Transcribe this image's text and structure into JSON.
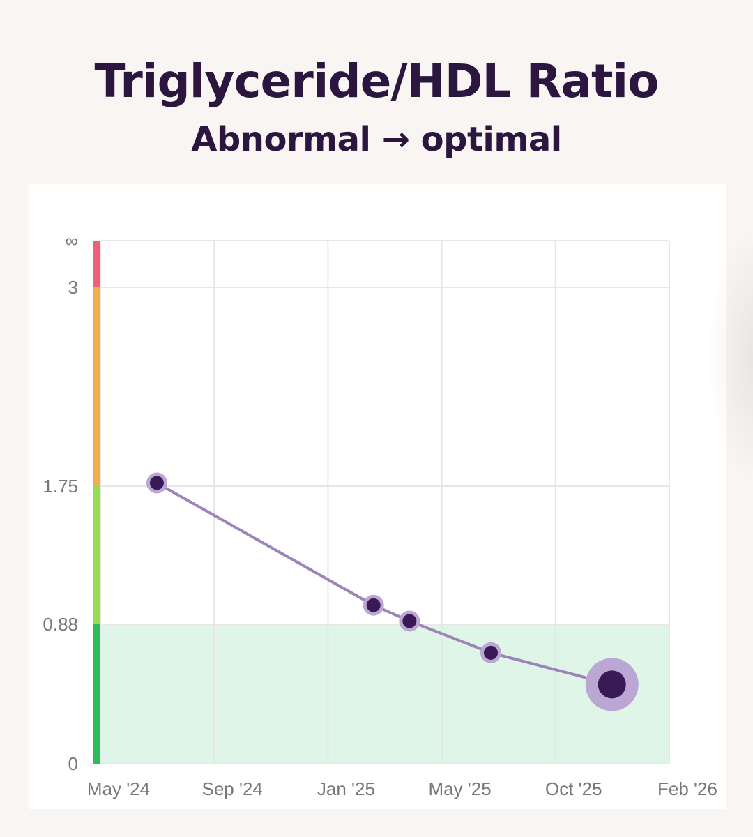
{
  "header": {
    "title": "Triglyceride/HDL Ratio",
    "subtitle": "Abnormal → optimal"
  },
  "chart_data": {
    "type": "line",
    "title": "Triglyceride/HDL Ratio",
    "subtitle": "Abnormal → optimal",
    "xlabel": "",
    "ylabel": "",
    "x_ticks": [
      {
        "label": "May '24",
        "date": "2024-05-01"
      },
      {
        "label": "Sep '24",
        "date": "2024-09-01"
      },
      {
        "label": "Jan '25",
        "date": "2025-01-01"
      },
      {
        "label": "May '25",
        "date": "2025-05-01"
      },
      {
        "label": "Oct '25",
        "date": "2025-10-01"
      },
      {
        "label": "Feb '26",
        "date": "2026-02-01"
      }
    ],
    "y_ticks": [
      {
        "label": "0",
        "value": 0
      },
      {
        "label": "0.88",
        "value": 0.88
      },
      {
        "label": "1.75",
        "value": 1.75
      },
      {
        "label": "3",
        "value": 3
      },
      {
        "label": "∞",
        "value": "infinity"
      }
    ],
    "ranges": [
      {
        "from": 0,
        "to": 0.88,
        "color": "#2dbd5c",
        "status": "optimal"
      },
      {
        "from": 0.88,
        "to": 1.75,
        "color": "#9adc50"
      },
      {
        "from": 1.75,
        "to": 3,
        "color": "#f0ae4c"
      },
      {
        "from": 3,
        "to": "infinity",
        "color": "#f0607a"
      }
    ],
    "optimal_band_color": "#dff5e8",
    "grid": true,
    "line_color": "#9c84b8",
    "point_color": "#3a1a55",
    "point_halo_color": "#bca6d4",
    "series": [
      {
        "points": [
          {
            "x": "2024-07-01",
            "y": 1.77
          },
          {
            "x": "2025-02-18",
            "y": 1.0
          },
          {
            "x": "2025-03-28",
            "y": 0.9
          },
          {
            "x": "2025-07-06",
            "y": 0.7
          },
          {
            "x": "2025-12-01",
            "y": 0.5
          }
        ]
      }
    ]
  }
}
